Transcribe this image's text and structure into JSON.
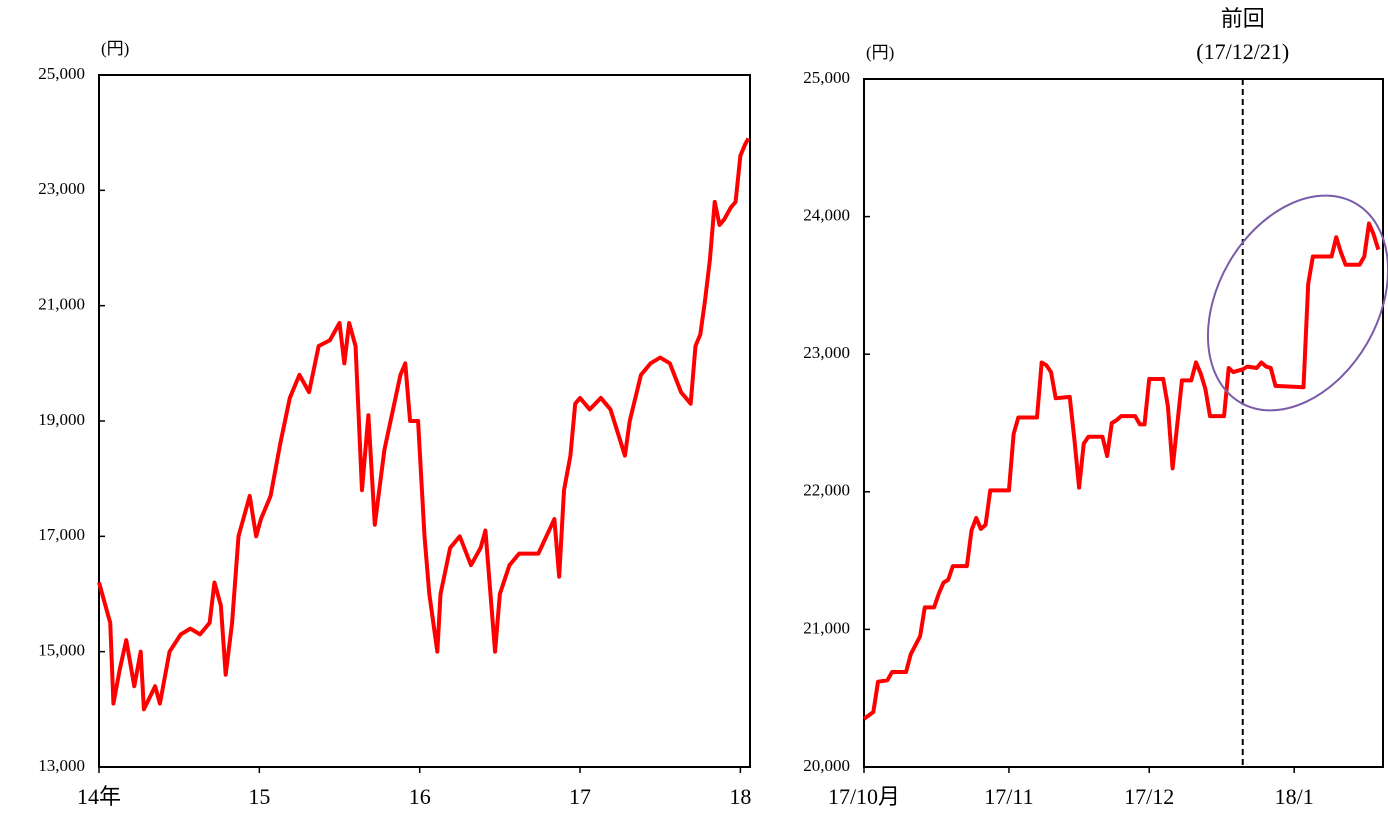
{
  "chart_data": [
    {
      "type": "line",
      "unit_label": "(円)",
      "x": [
        14.0,
        14.07,
        14.09,
        14.13,
        14.17,
        14.22,
        14.26,
        14.28,
        14.35,
        14.38,
        14.44,
        14.51,
        14.57,
        14.63,
        14.69,
        14.72,
        14.76,
        14.79,
        14.83,
        14.87,
        14.91,
        14.94,
        14.98,
        15.01,
        15.07,
        15.13,
        15.19,
        15.25,
        15.31,
        15.37,
        15.44,
        15.5,
        15.53,
        15.56,
        15.6,
        15.64,
        15.68,
        15.72,
        15.78,
        15.88,
        15.91,
        15.94,
        15.99,
        16.03,
        16.06,
        16.11,
        16.13,
        16.19,
        16.25,
        16.32,
        16.38,
        16.41,
        16.47,
        16.5,
        16.56,
        16.62,
        16.74,
        16.84,
        16.87,
        16.9,
        16.94,
        16.97,
        17.0,
        17.06,
        17.13,
        17.19,
        17.28,
        17.31,
        17.38,
        17.44,
        17.5,
        17.56,
        17.63,
        17.69,
        17.72,
        17.75,
        17.78,
        17.81,
        17.84,
        17.87,
        17.9,
        17.94,
        17.97,
        18.0,
        18.03,
        18.05
      ],
      "series": [
        {
          "color": "#ff0000",
          "values": [
            16200,
            15500,
            14100,
            14700,
            15200,
            14400,
            15000,
            14000,
            14400,
            14100,
            15000,
            15300,
            15400,
            15300,
            15500,
            16200,
            15800,
            14600,
            15500,
            17000,
            17400,
            17700,
            17000,
            17300,
            17700,
            18600,
            19400,
            19800,
            19500,
            20300,
            20400,
            20700,
            20000,
            20700,
            20300,
            17800,
            19100,
            17200,
            18500,
            19800,
            20000,
            19000,
            19000,
            17000,
            16000,
            15000,
            16000,
            16800,
            17000,
            16500,
            16800,
            17100,
            15000,
            16000,
            16500,
            16700,
            16700,
            17300,
            16300,
            17800,
            18400,
            19300,
            19400,
            19200,
            19400,
            19200,
            18400,
            19000,
            19800,
            20000,
            20100,
            20000,
            19500,
            19300,
            20300,
            20500,
            21100,
            21800,
            22800,
            22400,
            22500,
            22700,
            22800,
            23600,
            23800,
            23900
          ]
        }
      ],
      "xlim": [
        14,
        18.06
      ],
      "xticks": [
        {
          "value": 14,
          "label": "14年"
        },
        15,
        16,
        17,
        18
      ],
      "ylim": [
        13000,
        25000
      ],
      "yticks": [
        {
          "value": 13000,
          "label": "13,000"
        },
        {
          "value": 15000,
          "label": "15,000"
        },
        {
          "value": 17000,
          "label": "17,000"
        },
        {
          "value": 19000,
          "label": "19,000"
        },
        {
          "value": 21000,
          "label": "21,000"
        },
        {
          "value": 23000,
          "label": "23,000"
        },
        {
          "value": 25000,
          "label": "25,000"
        }
      ]
    },
    {
      "type": "line",
      "unit_label": "(円)",
      "x": [
        0,
        2,
        3,
        5,
        6,
        9,
        10,
        12,
        13,
        15,
        16,
        17,
        18,
        19,
        22,
        23,
        24,
        25,
        26,
        27,
        31,
        32,
        33,
        36,
        37,
        38,
        39,
        40,
        41,
        44,
        45,
        46,
        47,
        48,
        51,
        52,
        53,
        54,
        55,
        58,
        59,
        60,
        61,
        64,
        65,
        66,
        68,
        70,
        71,
        72,
        73,
        74,
        77,
        78,
        79,
        81,
        82,
        84,
        85,
        86,
        87,
        88,
        94,
        95,
        96,
        97,
        100,
        101,
        102,
        103,
        106,
        107,
        108,
        109,
        110
      ],
      "series": [
        {
          "color": "#ff0000",
          "values": [
            20350,
            20400,
            20620,
            20630,
            20690,
            20690,
            20820,
            20950,
            21160,
            21160,
            21260,
            21340,
            21360,
            21460,
            21460,
            21720,
            21810,
            21730,
            21760,
            22010,
            22010,
            22420,
            22540,
            22540,
            22540,
            22940,
            22920,
            22870,
            22680,
            22690,
            22380,
            22030,
            22350,
            22400,
            22400,
            22260,
            22500,
            22520,
            22550,
            22550,
            22490,
            22490,
            22820,
            22820,
            22620,
            22170,
            22810,
            22810,
            22940,
            22860,
            22750,
            22550,
            22550,
            22900,
            22870,
            22890,
            22910,
            22900,
            22940,
            22910,
            22900,
            22770,
            22760,
            23510,
            23710,
            23710,
            23710,
            23850,
            23740,
            23650,
            23650,
            23710,
            23950,
            23870,
            23760
          ]
        }
      ],
      "xlim": [
        0,
        111
      ],
      "xticks": [
        {
          "value": 0,
          "label": "17/10月"
        },
        {
          "value": 31,
          "label": "17/11"
        },
        {
          "value": 61,
          "label": "17/12"
        },
        {
          "value": 92,
          "label": "18/1"
        }
      ],
      "ylim": [
        20000,
        25000
      ],
      "yticks": [
        {
          "value": 20000,
          "label": "20,000"
        },
        {
          "value": 21000,
          "label": "21,000"
        },
        {
          "value": 22000,
          "label": "22,000"
        },
        {
          "value": 23000,
          "label": "23,000"
        },
        {
          "value": 24000,
          "label": "24,000"
        },
        {
          "value": 25000,
          "label": "25,000"
        }
      ],
      "annotation": {
        "x": 81,
        "label": "前回",
        "sublabel": "(17/12/21)"
      }
    }
  ]
}
